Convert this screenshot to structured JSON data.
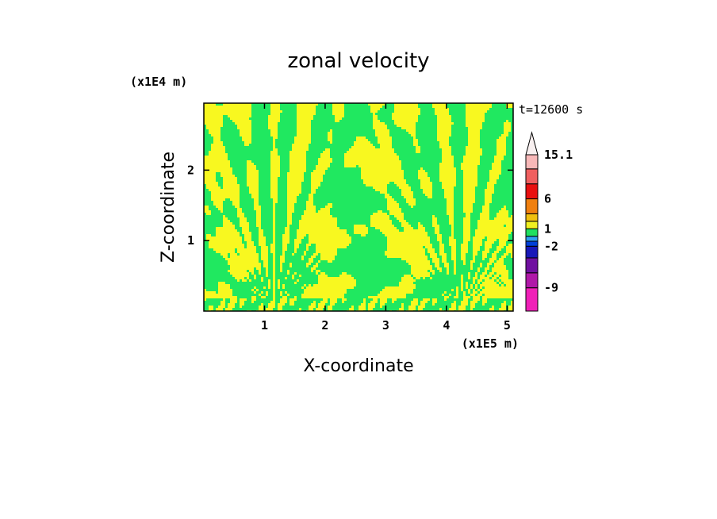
{
  "chart_data": {
    "type": "heatmap",
    "title": "zonal velocity",
    "xlabel": "X-coordinate",
    "ylabel": "Z-coordinate",
    "x_scale_label": "(x1E5 m)",
    "y_scale_label": "(x1E4 m)",
    "time_label": "t=12600 s",
    "xlim": [
      0,
      5.1
    ],
    "ylim": [
      0,
      2.95
    ],
    "x_ticks": [
      1,
      2,
      3,
      4,
      5
    ],
    "x_tick_labels": [
      "1",
      "2",
      "3",
      "4",
      "5"
    ],
    "y_ticks": [
      1,
      2
    ],
    "y_tick_labels": [
      "1",
      "2"
    ],
    "colorbar": {
      "levels": [
        -12,
        -9,
        -6,
        -3,
        -2,
        -1,
        0,
        1,
        2,
        3,
        6,
        9,
        12,
        15.1
      ],
      "colors": [
        "#f020b8",
        "#b018a8",
        "#7010a0",
        "#1818b8",
        "#0040d8",
        "#30a0f0",
        "#20e060",
        "#f0f020",
        "#f0c010",
        "#f08010",
        "#e81010",
        "#f06060",
        "#f8b8b8",
        "#f8f0f0"
      ],
      "labels": [
        "15.1",
        "6",
        "1",
        "-2",
        "-9"
      ],
      "label_levels": [
        15.1,
        6,
        1,
        -2,
        -9
      ],
      "extend": "max"
    },
    "field_colors": {
      "positive": "#f8f820",
      "negative": "#20e860"
    }
  }
}
